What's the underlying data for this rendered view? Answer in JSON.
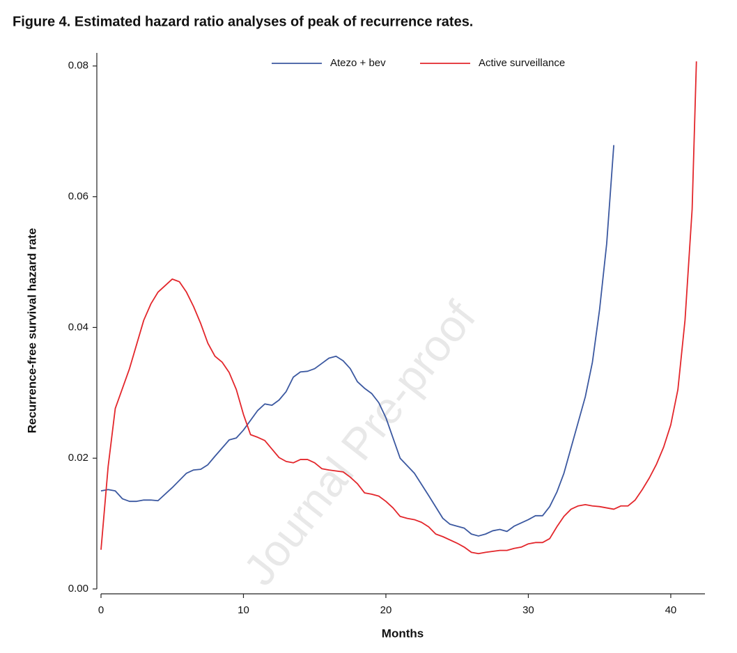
{
  "chart_data": {
    "type": "line",
    "title": "Figure 4. Estimated hazard ratio analyses of peak of recurrence rates.",
    "xlabel": "Months",
    "ylabel": "Recurrence-free survival hazard rate",
    "watermark": "Journal Pre-proof",
    "legend": "top",
    "xlim": [
      0,
      42.4
    ],
    "ylim": [
      0,
      0.082
    ],
    "xticks": [
      0,
      10,
      20,
      30,
      40
    ],
    "yticks": [
      {
        "value": 0,
        "label": "0.00"
      },
      {
        "value": 0.02,
        "label": "0.02"
      },
      {
        "value": 0.04,
        "label": "0.04"
      },
      {
        "value": 0.06,
        "label": "0.06"
      },
      {
        "value": 0.08,
        "label": "0.08"
      }
    ],
    "series": [
      {
        "name": "Atezo + bev",
        "color": "#3b58a0",
        "x": [
          0,
          0.5,
          1,
          1.5,
          2,
          2.5,
          3,
          3.5,
          4,
          5,
          6,
          6.5,
          7,
          7.5,
          8,
          9,
          9.5,
          10,
          11,
          11.5,
          12,
          12.5,
          13,
          13.5,
          14,
          14.5,
          15,
          15.5,
          16,
          16.5,
          17,
          17.5,
          18,
          18.5,
          19,
          19.5,
          20,
          21,
          22,
          23,
          24,
          24.5,
          25,
          25.5,
          26,
          26.5,
          27,
          27.5,
          28,
          28.5,
          29,
          30,
          30.5,
          31,
          31.5,
          32,
          32.5,
          33,
          34,
          34.5,
          35,
          35.5,
          36
        ],
        "values": [
          0.015,
          0.0152,
          0.015,
          0.0138,
          0.0134,
          0.0134,
          0.0136,
          0.0136,
          0.0135,
          0.0155,
          0.0177,
          0.0182,
          0.0183,
          0.019,
          0.0203,
          0.0228,
          0.0231,
          0.0243,
          0.0273,
          0.0283,
          0.0281,
          0.0289,
          0.0302,
          0.0324,
          0.0332,
          0.0333,
          0.0337,
          0.0345,
          0.0353,
          0.0356,
          0.0349,
          0.0337,
          0.0317,
          0.0307,
          0.0299,
          0.0285,
          0.0262,
          0.02,
          0.0177,
          0.0143,
          0.0108,
          0.0099,
          0.0096,
          0.0093,
          0.0084,
          0.0081,
          0.0084,
          0.0089,
          0.0091,
          0.0088,
          0.0096,
          0.0106,
          0.0112,
          0.0112,
          0.0126,
          0.0148,
          0.0177,
          0.0216,
          0.0294,
          0.0347,
          0.0427,
          0.0528,
          0.0679
        ]
      },
      {
        "name": "Active surveillance",
        "color": "#e3262b",
        "x": [
          0,
          0.5,
          1,
          2,
          3,
          3.5,
          4,
          4.5,
          5,
          5.5,
          6,
          6.5,
          7,
          7.5,
          8,
          8.5,
          9,
          9.5,
          10,
          10.5,
          11,
          11.5,
          12,
          12.5,
          13,
          13.5,
          14,
          14.5,
          15,
          15.5,
          16,
          17,
          17.5,
          18,
          18.5,
          19,
          19.5,
          20,
          20.5,
          21,
          21.5,
          22,
          22.5,
          23,
          23.5,
          24,
          25,
          25.5,
          26,
          26.5,
          27,
          28,
          28.5,
          29,
          29.5,
          30,
          30.5,
          31,
          31.5,
          32,
          32.5,
          33,
          33.5,
          34,
          34.5,
          35,
          35.5,
          36,
          36.5,
          37,
          37.5,
          38,
          38.5,
          39,
          39.5,
          40,
          40.5,
          41,
          41.5,
          41.8
        ],
        "values": [
          0.006,
          0.0187,
          0.0276,
          0.0337,
          0.0411,
          0.0436,
          0.0454,
          0.0464,
          0.0474,
          0.047,
          0.0454,
          0.0432,
          0.0406,
          0.0376,
          0.0356,
          0.0347,
          0.0331,
          0.0305,
          0.0267,
          0.0236,
          0.0232,
          0.0227,
          0.0214,
          0.0201,
          0.0195,
          0.0193,
          0.0198,
          0.0198,
          0.0193,
          0.0184,
          0.0182,
          0.0179,
          0.0171,
          0.0161,
          0.0147,
          0.0145,
          0.0142,
          0.0134,
          0.0124,
          0.0111,
          0.0108,
          0.0106,
          0.0102,
          0.0095,
          0.0084,
          0.008,
          0.007,
          0.0064,
          0.0056,
          0.0054,
          0.0056,
          0.0059,
          0.0059,
          0.0062,
          0.0064,
          0.0069,
          0.0071,
          0.0071,
          0.0077,
          0.0095,
          0.0111,
          0.0122,
          0.0127,
          0.0129,
          0.0127,
          0.0126,
          0.0124,
          0.0122,
          0.0127,
          0.0127,
          0.0136,
          0.0152,
          0.017,
          0.0191,
          0.0217,
          0.0251,
          0.0305,
          0.0411,
          0.0581,
          0.0807
        ]
      }
    ]
  }
}
